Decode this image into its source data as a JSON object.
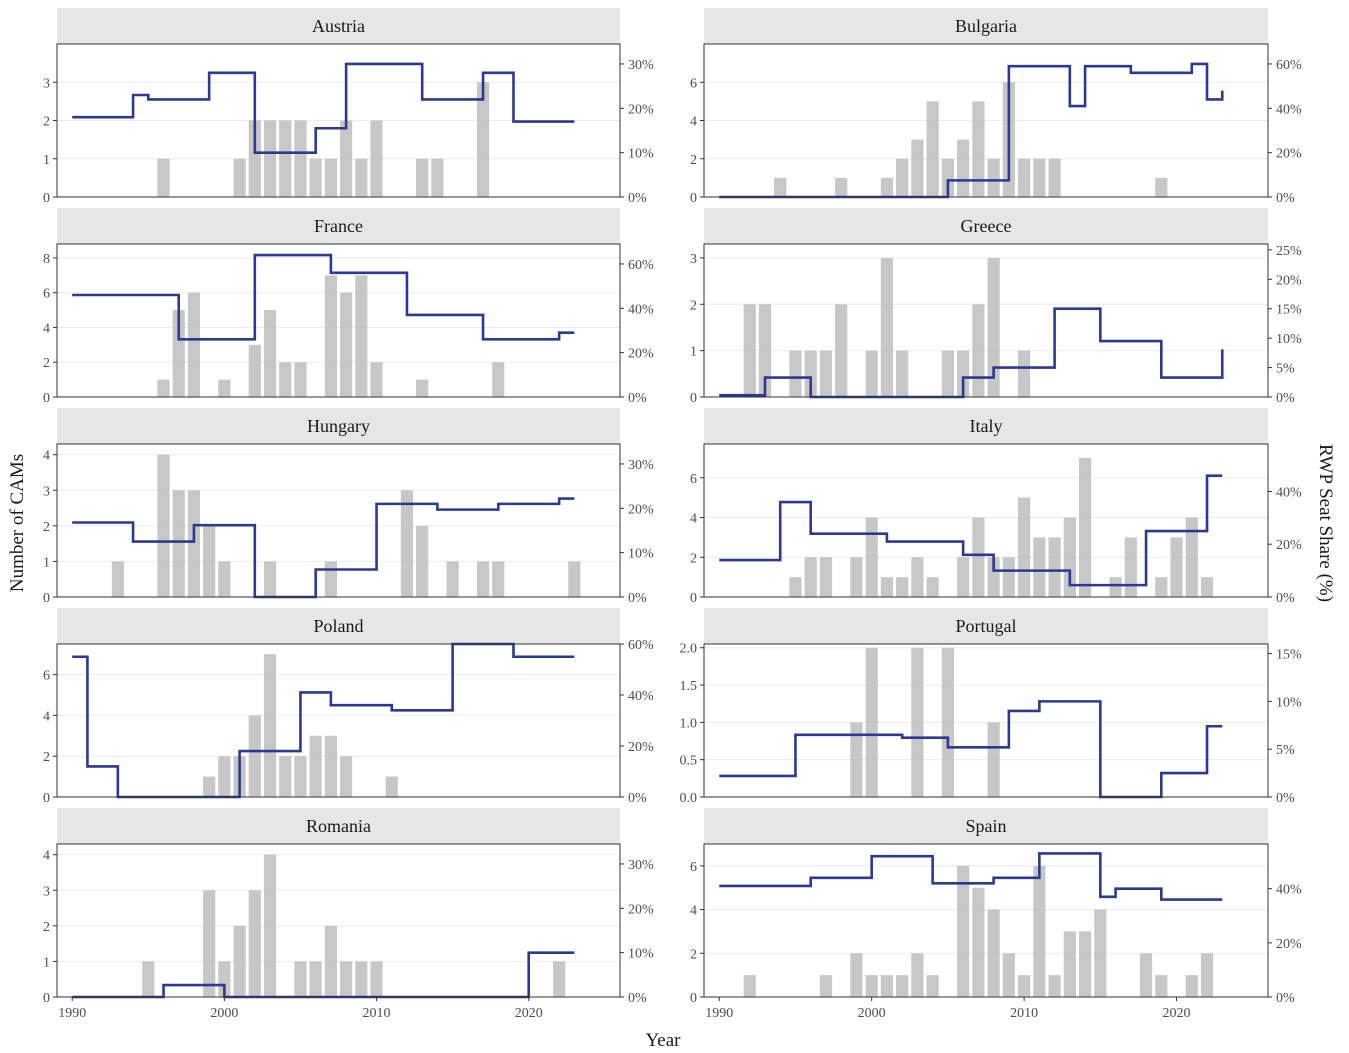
{
  "chart_data": {
    "type": "bar",
    "layout": "facets, 5 rows x 2 columns",
    "xlabel": "Year",
    "ylabel": "Number of CAMs",
    "y2label": "RWP Seat Share (%)",
    "x_ticks": [
      1990,
      2000,
      2010,
      2020
    ],
    "xlim": [
      1989,
      2026
    ],
    "colors": {
      "bars": "#bdbdbd",
      "line": "#2b3a91",
      "strip": "#e6e6e6"
    },
    "panels": [
      {
        "country": "Austria",
        "ylim": [
          0,
          4
        ],
        "y_ticks": [
          0,
          1,
          2,
          3
        ],
        "y2lim": [
          0,
          0.345
        ],
        "y2_ticks": [
          "0%",
          "10%",
          "20%",
          "30%"
        ],
        "y2_tick_values": [
          0,
          0.1,
          0.2,
          0.3
        ],
        "bars": [
          [
            1996,
            1
          ],
          [
            2001,
            1
          ],
          [
            2002,
            2
          ],
          [
            2003,
            2
          ],
          [
            2004,
            2
          ],
          [
            2005,
            2
          ],
          [
            2006,
            1
          ],
          [
            2007,
            1
          ],
          [
            2008,
            2
          ],
          [
            2009,
            1
          ],
          [
            2010,
            2
          ],
          [
            2013,
            1
          ],
          [
            2014,
            1
          ],
          [
            2017,
            3
          ]
        ],
        "seat_share": [
          [
            1990,
            0.18
          ],
          [
            1994,
            0.23
          ],
          [
            1995,
            0.22
          ],
          [
            1999,
            0.28
          ],
          [
            2002,
            0.1
          ],
          [
            2006,
            0.155
          ],
          [
            2008,
            0.3
          ],
          [
            2013,
            0.22
          ],
          [
            2017,
            0.28
          ],
          [
            2019,
            0.17
          ],
          [
            2023,
            0.17
          ]
        ]
      },
      {
        "country": "Bulgaria",
        "ylim": [
          0,
          8
        ],
        "y_ticks": [
          0,
          2,
          4,
          6
        ],
        "y2lim": [
          0,
          0.69
        ],
        "y2_ticks": [
          "0%",
          "20%",
          "40%",
          "60%"
        ],
        "y2_tick_values": [
          0,
          0.2,
          0.4,
          0.6
        ],
        "bars": [
          [
            1994,
            1
          ],
          [
            1998,
            1
          ],
          [
            2001,
            1
          ],
          [
            2002,
            2
          ],
          [
            2003,
            3
          ],
          [
            2004,
            5
          ],
          [
            2005,
            2
          ],
          [
            2006,
            3
          ],
          [
            2007,
            5
          ],
          [
            2008,
            2
          ],
          [
            2009,
            6
          ],
          [
            2010,
            2
          ],
          [
            2011,
            2
          ],
          [
            2012,
            2
          ],
          [
            2019,
            1
          ]
        ],
        "seat_share": [
          [
            1990,
            0
          ],
          [
            2005,
            0.075
          ],
          [
            2009,
            0.59
          ],
          [
            2013,
            0.41
          ],
          [
            2014,
            0.59
          ],
          [
            2017,
            0.56
          ],
          [
            2021,
            0.6
          ],
          [
            2022,
            0.44
          ],
          [
            2023,
            0.48
          ]
        ]
      },
      {
        "country": "France",
        "ylim": [
          0,
          8.8
        ],
        "y_ticks": [
          0,
          2,
          4,
          6,
          8
        ],
        "y2lim": [
          0,
          0.69
        ],
        "y2_ticks": [
          "0%",
          "20%",
          "40%",
          "60%"
        ],
        "y2_tick_values": [
          0,
          0.2,
          0.4,
          0.6
        ],
        "bars": [
          [
            1996,
            1
          ],
          [
            1997,
            5
          ],
          [
            1998,
            6
          ],
          [
            2000,
            1
          ],
          [
            2002,
            3
          ],
          [
            2003,
            5
          ],
          [
            2004,
            2
          ],
          [
            2005,
            2
          ],
          [
            2007,
            7
          ],
          [
            2008,
            6
          ],
          [
            2009,
            7
          ],
          [
            2010,
            2
          ],
          [
            2013,
            1
          ],
          [
            2018,
            2
          ]
        ],
        "seat_share": [
          [
            1990,
            0.46
          ],
          [
            1997,
            0.26
          ],
          [
            2002,
            0.64
          ],
          [
            2007,
            0.56
          ],
          [
            2012,
            0.37
          ],
          [
            2017,
            0.26
          ],
          [
            2022,
            0.29
          ],
          [
            2023,
            0.29
          ]
        ]
      },
      {
        "country": "Greece",
        "ylim": [
          0,
          3.3
        ],
        "y_ticks": [
          0,
          1,
          2,
          3
        ],
        "y2lim": [
          0,
          0.26
        ],
        "y2_ticks": [
          "0%",
          "5%",
          "10%",
          "15%",
          "20%",
          "25%"
        ],
        "y2_tick_values": [
          0,
          0.05,
          0.1,
          0.15,
          0.2,
          0.25
        ],
        "bars": [
          [
            1992,
            2
          ],
          [
            1993,
            2
          ],
          [
            1995,
            1
          ],
          [
            1996,
            1
          ],
          [
            1997,
            1
          ],
          [
            1998,
            2
          ],
          [
            2000,
            1
          ],
          [
            2001,
            3
          ],
          [
            2002,
            1
          ],
          [
            2005,
            1
          ],
          [
            2006,
            1
          ],
          [
            2007,
            2
          ],
          [
            2008,
            3
          ],
          [
            2010,
            1
          ]
        ],
        "seat_share": [
          [
            1990,
            0.003
          ],
          [
            1993,
            0.033
          ],
          [
            1996,
            0
          ],
          [
            2006,
            0.033
          ],
          [
            2008,
            0.05
          ],
          [
            2012,
            0.15
          ],
          [
            2015,
            0.095
          ],
          [
            2019,
            0.033
          ],
          [
            2023,
            0.081
          ]
        ]
      },
      {
        "country": "Hungary",
        "ylim": [
          0,
          4.3
        ],
        "y_ticks": [
          0,
          1,
          2,
          3,
          4
        ],
        "y2lim": [
          0,
          0.345
        ],
        "y2_ticks": [
          "0%",
          "10%",
          "20%",
          "30%"
        ],
        "y2_tick_values": [
          0,
          0.1,
          0.2,
          0.3
        ],
        "bars": [
          [
            1993,
            1
          ],
          [
            1996,
            4
          ],
          [
            1997,
            3
          ],
          [
            1998,
            3
          ],
          [
            1999,
            2
          ],
          [
            2000,
            1
          ],
          [
            2003,
            1
          ],
          [
            2007,
            1
          ],
          [
            2012,
            3
          ],
          [
            2013,
            2
          ],
          [
            2015,
            1
          ],
          [
            2017,
            1
          ],
          [
            2018,
            1
          ],
          [
            2023,
            1
          ]
        ],
        "seat_share": [
          [
            1990,
            0.168
          ],
          [
            1994,
            0.125
          ],
          [
            1998,
            0.162
          ],
          [
            2002,
            0
          ],
          [
            2006,
            0.062
          ],
          [
            2010,
            0.21
          ],
          [
            2014,
            0.197
          ],
          [
            2018,
            0.21
          ],
          [
            2022,
            0.222
          ],
          [
            2023,
            0.222
          ]
        ]
      },
      {
        "country": "Italy",
        "ylim": [
          0,
          7.7
        ],
        "y_ticks": [
          0,
          2,
          4,
          6
        ],
        "y2lim": [
          0,
          0.58
        ],
        "y2_ticks": [
          "0%",
          "20%",
          "40%"
        ],
        "y2_tick_values": [
          0,
          0.2,
          0.4
        ],
        "bars": [
          [
            1995,
            1
          ],
          [
            1996,
            2
          ],
          [
            1997,
            2
          ],
          [
            1999,
            2
          ],
          [
            2000,
            4
          ],
          [
            2001,
            1
          ],
          [
            2002,
            1
          ],
          [
            2003,
            2
          ],
          [
            2004,
            1
          ],
          [
            2006,
            2
          ],
          [
            2007,
            4
          ],
          [
            2008,
            2
          ],
          [
            2009,
            2
          ],
          [
            2010,
            5
          ],
          [
            2011,
            3
          ],
          [
            2012,
            3
          ],
          [
            2013,
            4
          ],
          [
            2014,
            7
          ],
          [
            2016,
            1
          ],
          [
            2017,
            3
          ],
          [
            2019,
            1
          ],
          [
            2020,
            3
          ],
          [
            2021,
            4
          ],
          [
            2022,
            1
          ]
        ],
        "seat_share": [
          [
            1990,
            0.14
          ],
          [
            1994,
            0.36
          ],
          [
            1996,
            0.24
          ],
          [
            2001,
            0.21
          ],
          [
            2006,
            0.16
          ],
          [
            2008,
            0.1
          ],
          [
            2013,
            0.045
          ],
          [
            2018,
            0.25
          ],
          [
            2022,
            0.46
          ],
          [
            2023,
            0.46
          ]
        ]
      },
      {
        "country": "Poland",
        "ylim": [
          0,
          7.5
        ],
        "y_ticks": [
          0,
          2,
          4,
          6
        ],
        "y2lim": [
          0,
          0.6
        ],
        "y2_ticks": [
          "0%",
          "20%",
          "40%",
          "60%"
        ],
        "y2_tick_values": [
          0,
          0.2,
          0.4,
          0.6
        ],
        "bars": [
          [
            1999,
            1
          ],
          [
            2000,
            2
          ],
          [
            2001,
            2
          ],
          [
            2002,
            4
          ],
          [
            2003,
            7
          ],
          [
            2004,
            2
          ],
          [
            2005,
            2
          ],
          [
            2006,
            3
          ],
          [
            2007,
            3
          ],
          [
            2008,
            2
          ],
          [
            2011,
            1
          ]
        ],
        "seat_share": [
          [
            1990,
            0.55
          ],
          [
            1991,
            0.12
          ],
          [
            1993,
            0
          ],
          [
            2001,
            0.18
          ],
          [
            2005,
            0.41
          ],
          [
            2007,
            0.36
          ],
          [
            2011,
            0.34
          ],
          [
            2015,
            0.6
          ],
          [
            2019,
            0.55
          ],
          [
            2023,
            0.55
          ]
        ]
      },
      {
        "country": "Portugal",
        "ylim": [
          0,
          2.05
        ],
        "y_ticks": [
          0,
          0.5,
          1,
          1.5,
          2
        ],
        "y_tick_labels": [
          "0.0",
          "0.5",
          "1.0",
          "1.5",
          "2.0"
        ],
        "y2lim": [
          0,
          0.16
        ],
        "y2_ticks": [
          "0%",
          "5%",
          "10%",
          "15%"
        ],
        "y2_tick_values": [
          0,
          0.05,
          0.1,
          0.15
        ],
        "bars": [
          [
            1999,
            1
          ],
          [
            2000,
            2
          ],
          [
            2003,
            2
          ],
          [
            2005,
            2
          ],
          [
            2008,
            1
          ]
        ],
        "seat_share": [
          [
            1990,
            0.022
          ],
          [
            1995,
            0.065
          ],
          [
            2002,
            0.062
          ],
          [
            2005,
            0.052
          ],
          [
            2009,
            0.09
          ],
          [
            2011,
            0.1
          ],
          [
            2015,
            0
          ],
          [
            2019,
            0.025
          ],
          [
            2022,
            0.074
          ],
          [
            2023,
            0.074
          ]
        ]
      },
      {
        "country": "Romania",
        "ylim": [
          0,
          4.3
        ],
        "y_ticks": [
          0,
          1,
          2,
          3,
          4
        ],
        "y2lim": [
          0,
          0.345
        ],
        "y2_ticks": [
          "0%",
          "10%",
          "20%",
          "30%"
        ],
        "y2_tick_values": [
          0,
          0.1,
          0.2,
          0.3
        ],
        "bars": [
          [
            1995,
            1
          ],
          [
            1999,
            3
          ],
          [
            2000,
            1
          ],
          [
            2001,
            2
          ],
          [
            2002,
            3
          ],
          [
            2003,
            4
          ],
          [
            2005,
            1
          ],
          [
            2006,
            1
          ],
          [
            2007,
            2
          ],
          [
            2008,
            1
          ],
          [
            2009,
            1
          ],
          [
            2010,
            1
          ],
          [
            2022,
            1
          ]
        ],
        "seat_share": [
          [
            1990,
            0
          ],
          [
            1996,
            0.027
          ],
          [
            2000,
            0
          ],
          [
            2020,
            0.1
          ],
          [
            2023,
            0.1
          ]
        ]
      },
      {
        "country": "Spain",
        "ylim": [
          0,
          7
        ],
        "y_ticks": [
          0,
          2,
          4,
          6
        ],
        "y2lim": [
          0,
          0.565
        ],
        "y2_ticks": [
          "0%",
          "20%",
          "40%"
        ],
        "y2_tick_values": [
          0,
          0.2,
          0.4
        ],
        "bars": [
          [
            1992,
            1
          ],
          [
            1997,
            1
          ],
          [
            1999,
            2
          ],
          [
            2000,
            1
          ],
          [
            2001,
            1
          ],
          [
            2002,
            1
          ],
          [
            2003,
            2
          ],
          [
            2004,
            1
          ],
          [
            2006,
            6
          ],
          [
            2007,
            5
          ],
          [
            2008,
            4
          ],
          [
            2009,
            2
          ],
          [
            2010,
            1
          ],
          [
            2011,
            6
          ],
          [
            2012,
            1
          ],
          [
            2013,
            3
          ],
          [
            2014,
            3
          ],
          [
            2015,
            4
          ],
          [
            2018,
            2
          ],
          [
            2019,
            1
          ],
          [
            2021,
            1
          ],
          [
            2022,
            2
          ]
        ],
        "seat_share": [
          [
            1990,
            0.41
          ],
          [
            1996,
            0.44
          ],
          [
            2000,
            0.52
          ],
          [
            2004,
            0.42
          ],
          [
            2008,
            0.44
          ],
          [
            2011,
            0.53
          ],
          [
            2015,
            0.37
          ],
          [
            2016,
            0.4
          ],
          [
            2019,
            0.36
          ],
          [
            2023,
            0.36
          ]
        ]
      }
    ]
  }
}
